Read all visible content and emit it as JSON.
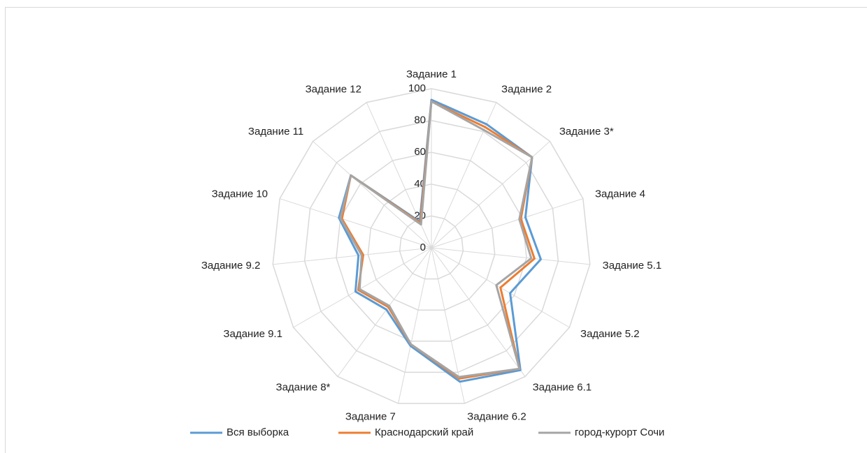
{
  "chart_data": {
    "type": "radar",
    "categories": [
      "Задание 1",
      "Задание 2",
      "Задание 3*",
      "Задание 4",
      "Задание 5.1",
      "Задание 5.2",
      "Задание 6.1",
      "Задание 6.2",
      "Задание 7",
      "Задание 8*",
      "Задание 9.1",
      "Задание 9.2",
      "Задание 10",
      "Задание 11",
      "Задание 12"
    ],
    "series": [
      {
        "name": "Вся выборка",
        "color": "#5b9bd5",
        "values": [
          93,
          85,
          85,
          62,
          69,
          57,
          95,
          86,
          63,
          48,
          55,
          46,
          61,
          68,
          18
        ]
      },
      {
        "name": "Краснодарский край",
        "color": "#ed7d31",
        "values": [
          92,
          83,
          85,
          59,
          65,
          50,
          94,
          84,
          62,
          46,
          53,
          43,
          59,
          68,
          17
        ]
      },
      {
        "name": "город-курорт Сочи",
        "color": "#a5a5a5",
        "values": [
          92,
          81,
          85,
          58,
          63,
          47,
          94,
          83,
          62,
          45,
          52,
          44,
          60,
          68,
          16
        ]
      }
    ],
    "ylim": [
      0,
      100
    ],
    "yticks": [
      0,
      20,
      40,
      60,
      80,
      100
    ],
    "grid": true,
    "legend": "bottom"
  }
}
